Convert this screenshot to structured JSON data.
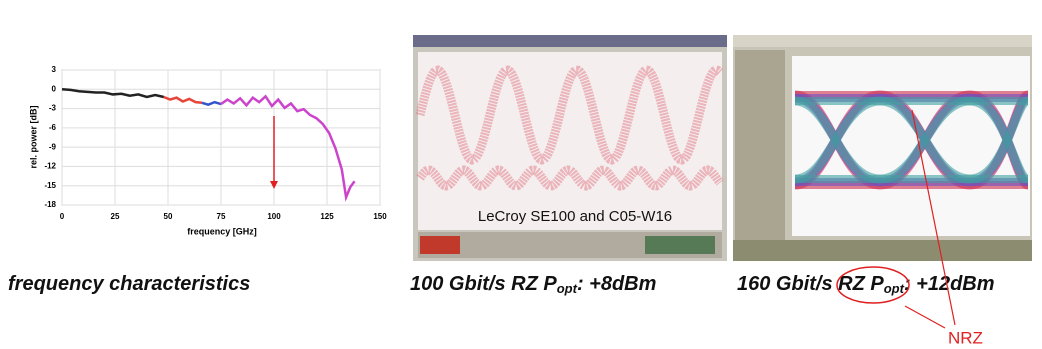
{
  "chart_data": {
    "type": "line",
    "xlabel": "frequency [GHz]",
    "ylabel": "rel. power [dB]",
    "xlim": [
      0,
      150
    ],
    "ylim": [
      -18,
      3
    ],
    "xticks": [
      0,
      25,
      50,
      75,
      100,
      125,
      150
    ],
    "yticks": [
      3,
      0,
      -3,
      -6,
      -9,
      -12,
      -15,
      -18
    ],
    "grid": true,
    "series": [
      {
        "color": "#222222",
        "x": [
          0,
          4,
          8,
          12,
          16,
          20,
          24,
          28,
          32,
          36,
          40,
          44,
          48
        ],
        "values": [
          0,
          -0.1,
          -0.3,
          -0.4,
          -0.5,
          -0.5,
          -0.8,
          -0.7,
          -1,
          -0.8,
          -1.2,
          -0.9,
          -1.2
        ]
      },
      {
        "color": "#e8443a",
        "x": [
          48,
          51,
          54,
          57,
          60,
          63,
          66
        ],
        "values": [
          -1.2,
          -1.6,
          -1.3,
          -1.9,
          -1.5,
          -2.0,
          -2.1
        ]
      },
      {
        "color": "#3355cc",
        "x": [
          66,
          69,
          72,
          75
        ],
        "values": [
          -2.1,
          -2.4,
          -2.0,
          -2.3
        ]
      },
      {
        "color": "#cc44cc",
        "x": [
          75,
          78,
          81,
          84,
          87,
          90,
          93,
          96,
          99,
          102,
          105,
          108,
          111,
          114,
          117,
          120,
          123,
          126,
          129,
          132,
          134,
          136,
          138
        ],
        "values": [
          -2.3,
          -1.6,
          -2.2,
          -1.4,
          -2.5,
          -1.3,
          -2.0,
          -1.1,
          -2.6,
          -1.6,
          -2.9,
          -2.2,
          -3.4,
          -3.1,
          -4.0,
          -4.5,
          -5.4,
          -6.8,
          -9.2,
          -12.5,
          -16.8,
          -15.2,
          -14.3
        ]
      }
    ]
  },
  "scope_text": "LeCroy SE100 and C05-W16",
  "captions": [
    {
      "parts": [
        "frequency characteristics"
      ]
    },
    {
      "parts": [
        "100 Gbit/s RZ P",
        "opt",
        ": +8dBm"
      ]
    },
    {
      "parts": [
        "160 Gbit/s RZ P",
        "opt",
        ": +12dBm"
      ]
    }
  ],
  "annotation": "NRZ"
}
